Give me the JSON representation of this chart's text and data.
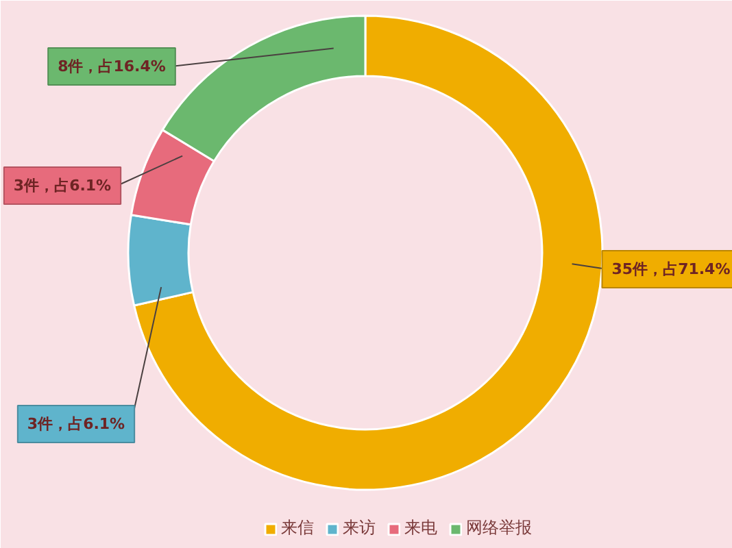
{
  "chart_data": {
    "type": "donut",
    "categories": [
      "来信",
      "来访",
      "来电",
      "网络举报"
    ],
    "values": [
      35,
      3,
      3,
      8
    ],
    "colors": [
      "#f0ad00",
      "#5fb4cc",
      "#e76b7c",
      "#6bb86e"
    ],
    "value_labels": [
      "35件，占71.4%",
      "3件，占6.1%",
      "3件，占6.1%",
      "8件，占16.4%"
    ],
    "legend": "bottom"
  }
}
